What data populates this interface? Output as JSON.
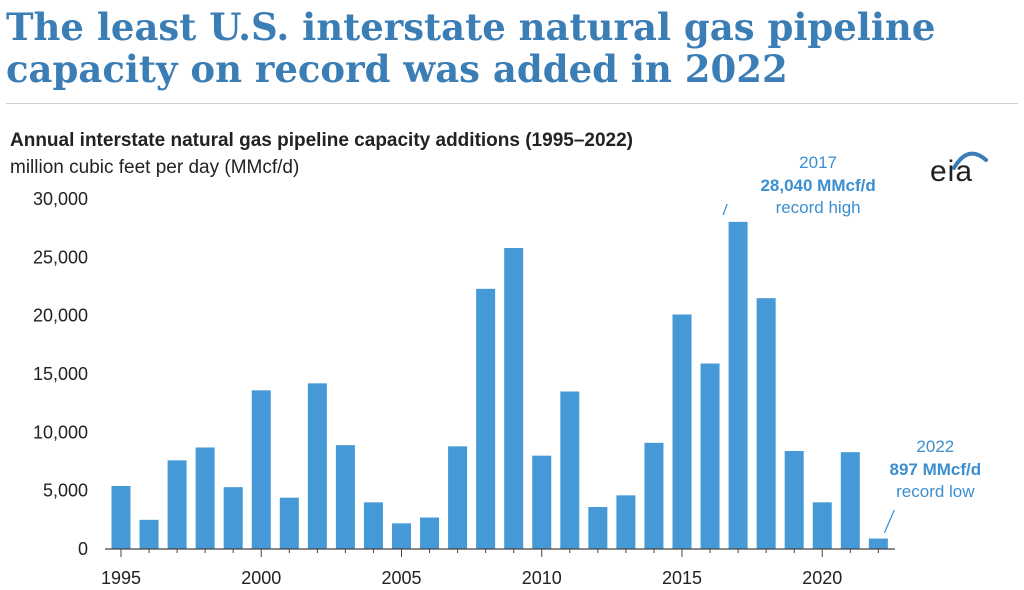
{
  "headline": "The least U.S. interstate natural gas pipeline capacity on record was added in 2022",
  "brand": {
    "logo_text": "eia",
    "accent": "#3b7db5"
  },
  "chart_data": {
    "type": "bar",
    "title": "Annual interstate natural gas pipeline capacity additions (1995–2022)",
    "ylabel": "million cubic feet per day (MMcf/d)",
    "xlabel": "",
    "bar_color": "#4499d6",
    "ylim": [
      0,
      30000
    ],
    "yticks": [
      0,
      5000,
      10000,
      15000,
      20000,
      25000,
      30000
    ],
    "ytick_labels": [
      "0",
      "5,000",
      "10,000",
      "15,000",
      "20,000",
      "25,000",
      "30,000"
    ],
    "xtick_labels": [
      "1995",
      "2000",
      "2005",
      "2010",
      "2015",
      "2020"
    ],
    "categories": [
      1995,
      1996,
      1997,
      1998,
      1999,
      2000,
      2001,
      2002,
      2003,
      2004,
      2005,
      2006,
      2007,
      2008,
      2009,
      2010,
      2011,
      2012,
      2013,
      2014,
      2015,
      2016,
      2017,
      2018,
      2019,
      2020,
      2021,
      2022
    ],
    "values": [
      5400,
      2500,
      7600,
      8700,
      5300,
      13600,
      4400,
      14200,
      8900,
      4000,
      2200,
      2700,
      8800,
      22300,
      25800,
      8000,
      13500,
      3600,
      4600,
      9100,
      20100,
      15900,
      28040,
      21500,
      8400,
      4000,
      8300,
      897
    ],
    "annotations": [
      {
        "year_label": "2017",
        "value_label": "28,040 MMcf/d",
        "note": "record high"
      },
      {
        "year_label": "2022",
        "value_label": "897 MMcf/d",
        "note": "record low"
      }
    ]
  }
}
